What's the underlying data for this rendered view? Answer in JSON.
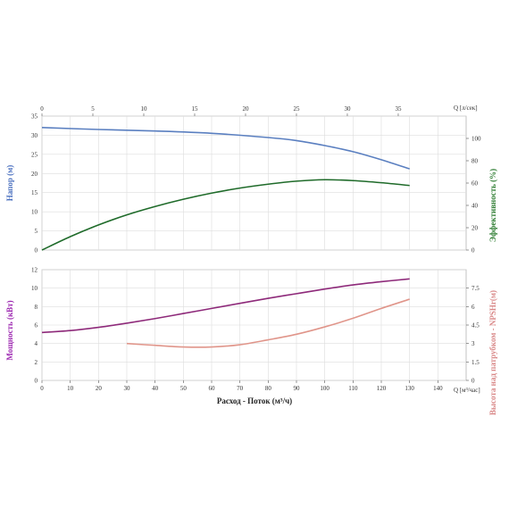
{
  "chart_data": {
    "type": "line",
    "xlabel": "Расход - Поток (м³/ч)",
    "x_unit_label": "Q [м³/час]",
    "x_range": [
      0,
      150
    ],
    "x_ticks": [
      0,
      10,
      20,
      30,
      40,
      50,
      60,
      70,
      80,
      90,
      100,
      110,
      120,
      130,
      140
    ],
    "top_axis": {
      "label": "Q [л/сек]",
      "range": [
        0,
        41.67
      ],
      "ticks": [
        0,
        5,
        10,
        15,
        20,
        25,
        30,
        35
      ]
    },
    "upper_panel": {
      "left_axis": {
        "label": "Напор (м)",
        "color": "#4a6fbf",
        "range": [
          0,
          35
        ],
        "ticks": [
          0,
          5,
          10,
          15,
          20,
          25,
          30,
          35
        ]
      },
      "right_axis": {
        "label": "Эффективность (%)",
        "color": "#2e7d32",
        "range": [
          0,
          120
        ],
        "ticks": [
          0,
          20,
          40,
          60,
          80,
          100
        ]
      },
      "series": [
        {
          "axis": "left",
          "color": "#5a7fc0",
          "points": [
            [
              0,
              32
            ],
            [
              20,
              31.5
            ],
            [
              40,
              31.1
            ],
            [
              60,
              30.5
            ],
            [
              80,
              29.4
            ],
            [
              90,
              28.6
            ],
            [
              100,
              27.3
            ],
            [
              110,
              25.7
            ],
            [
              120,
              23.6
            ],
            [
              130,
              21.2
            ]
          ]
        },
        {
          "axis": "right",
          "color": "#1f6b2a",
          "points": [
            [
              0,
              0
            ],
            [
              10,
              12
            ],
            [
              20,
              22.5
            ],
            [
              30,
              31.5
            ],
            [
              40,
              39
            ],
            [
              50,
              45.5
            ],
            [
              60,
              51
            ],
            [
              70,
              55.5
            ],
            [
              80,
              59
            ],
            [
              90,
              61.7
            ],
            [
              100,
              63
            ],
            [
              110,
              62.2
            ],
            [
              120,
              60.3
            ],
            [
              130,
              57.8
            ]
          ]
        }
      ]
    },
    "lower_panel": {
      "left_axis": {
        "label": "Мощность (кВт)",
        "color": "#9c27b0",
        "range": [
          0,
          12
        ],
        "ticks": [
          0,
          2,
          4,
          6,
          8,
          10,
          12
        ]
      },
      "right_axis": {
        "label": "Высота над патрубком - NPSHr(м)",
        "color": "#d98888",
        "range": [
          0,
          9
        ],
        "ticks": [
          "0",
          "1.5",
          "3",
          "4.5",
          "6",
          "7.5"
        ]
      },
      "series": [
        {
          "axis": "left",
          "color": "#8e2a7a",
          "points": [
            [
              0,
              5.2
            ],
            [
              10,
              5.4
            ],
            [
              20,
              5.75
            ],
            [
              30,
              6.2
            ],
            [
              40,
              6.7
            ],
            [
              50,
              7.25
            ],
            [
              60,
              7.8
            ],
            [
              70,
              8.35
            ],
            [
              80,
              8.9
            ],
            [
              90,
              9.4
            ],
            [
              100,
              9.9
            ],
            [
              110,
              10.35
            ],
            [
              120,
              10.7
            ],
            [
              130,
              11
            ]
          ]
        },
        {
          "axis": "right",
          "color": "#e0958a",
          "points": [
            [
              30,
              3.0
            ],
            [
              40,
              2.85
            ],
            [
              50,
              2.72
            ],
            [
              60,
              2.72
            ],
            [
              70,
              2.9
            ],
            [
              80,
              3.3
            ],
            [
              90,
              3.75
            ],
            [
              100,
              4.35
            ],
            [
              110,
              5.05
            ],
            [
              120,
              5.85
            ],
            [
              130,
              6.6
            ]
          ]
        }
      ]
    }
  }
}
